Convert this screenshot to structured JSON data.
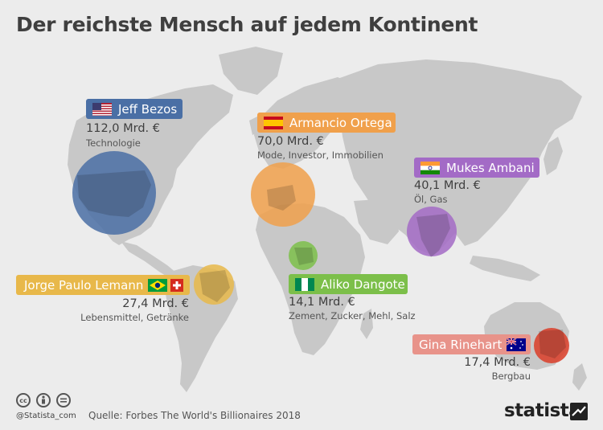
{
  "title": "Der reichste Mensch auf jedem Kontinent",
  "people": [
    {
      "name": "Jeff Bezos",
      "country": "USA",
      "wealth": "112,0 Mrd. €",
      "industry": "Technologie",
      "color": "#4a6fa5"
    },
    {
      "name": "Armancio Ortega",
      "country": "Spain",
      "wealth": "70,0 Mrd. €",
      "industry": "Mode, Investor, Immobilien",
      "color": "#f0a04b"
    },
    {
      "name": "Mukes Ambani",
      "country": "India",
      "wealth": "40,1 Mrd. €",
      "industry": "Öl, Gas",
      "color": "#a36bc6"
    },
    {
      "name": "Jorge Paulo Lemann",
      "country": "Brazil / Switzerland",
      "wealth": "27,4 Mrd. €",
      "industry": "Lebensmittel, Getränke",
      "color": "#e8b84a"
    },
    {
      "name": "Aliko Dangote",
      "country": "Nigeria",
      "wealth": "14,1 Mrd. €",
      "industry": "Zement, Zucker, Mehl, Salz",
      "color": "#7cbf4a"
    },
    {
      "name": "Gina Rinehart",
      "country": "Australia",
      "wealth": "17,4 Mrd. €",
      "industry": "Bergbau",
      "color": "#e05a47"
    }
  ],
  "footer": {
    "handle": "@Statista_com",
    "source": "Quelle: Forbes The World's Billionaires 2018",
    "brand": "statista",
    "license_icons": [
      "cc-icon",
      "attribution-icon",
      "no-derivatives-icon"
    ]
  }
}
